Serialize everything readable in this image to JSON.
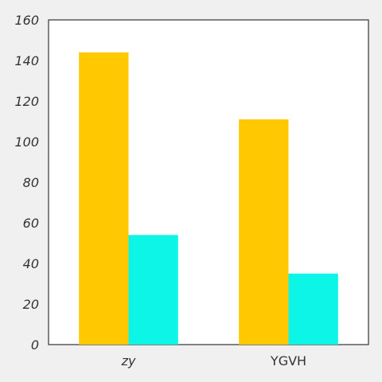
{
  "chart_data": {
    "type": "bar",
    "title": "",
    "xlabel": "",
    "ylabel": "",
    "categories": [
      "zy",
      "YGVH"
    ],
    "category_italic": [
      true,
      false
    ],
    "series": [
      {
        "values": [
          144,
          111
        ],
        "color": "#ffc800"
      },
      {
        "values": [
          54,
          35
        ],
        "color": "#0cf5e6"
      }
    ],
    "ylim": [
      0,
      160
    ],
    "yticks": [
      "0",
      "20",
      "40",
      "60",
      "80",
      "100",
      "120",
      "140",
      "160"
    ],
    "grid": false,
    "legend": "none",
    "background": "#f0f0f0",
    "plot_background": "#ffffff"
  }
}
